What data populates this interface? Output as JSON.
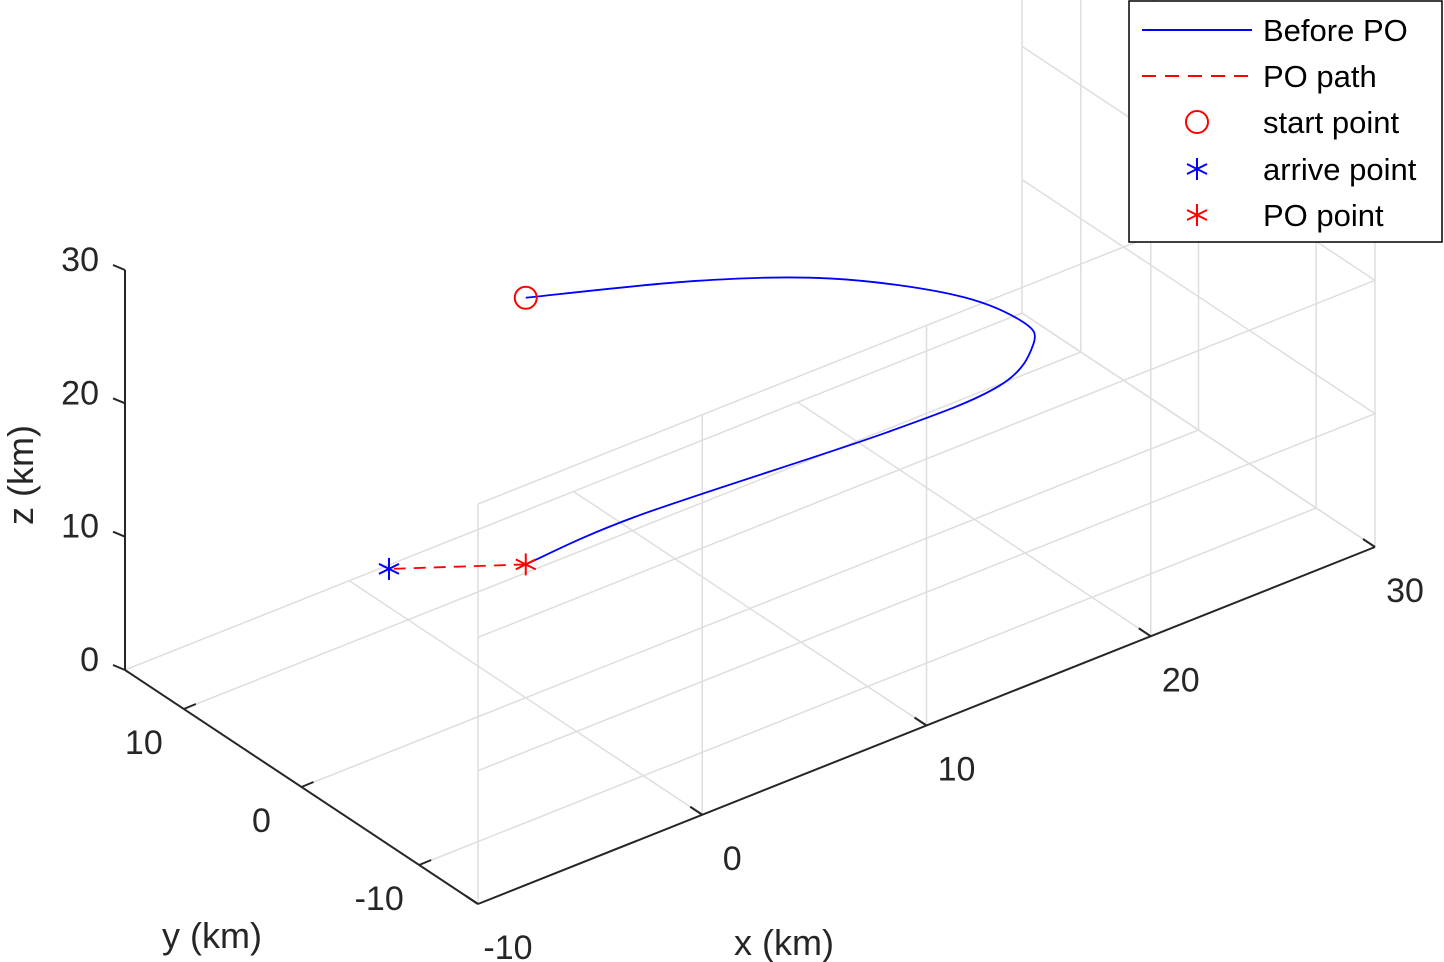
{
  "chart_data": {
    "type": "line",
    "title": "",
    "xlabel": "x (km)",
    "ylabel": "y (km)",
    "zlabel": "z (km)",
    "xlim": [
      -10,
      30
    ],
    "ylim": [
      -15,
      15
    ],
    "zlim": [
      0,
      30
    ],
    "x_ticks": [
      -10,
      0,
      10,
      20,
      30
    ],
    "y_ticks": [
      -10,
      0,
      10
    ],
    "z_ticks": [
      0,
      10,
      20,
      30
    ],
    "grid": true,
    "legend_position": "top-right",
    "series": [
      {
        "name": "Before PO",
        "style": "solid",
        "color": "#0000ff",
        "points": [
          [
            0,
            0,
            30
          ],
          [
            6,
            -3,
            29
          ],
          [
            11,
            -5,
            27
          ],
          [
            16,
            -6,
            23
          ],
          [
            19,
            -6,
            19
          ],
          [
            20,
            -5,
            16
          ],
          [
            19,
            -4,
            13
          ],
          [
            15,
            -2,
            11
          ],
          [
            5,
            0,
            10.3
          ],
          [
            0,
            0,
            10
          ]
        ]
      },
      {
        "name": "PO path",
        "style": "dashed",
        "color": "#ff0000",
        "points": [
          [
            0,
            0,
            10
          ],
          [
            -4,
            4,
            10
          ]
        ]
      },
      {
        "name": "start point",
        "marker": "circle",
        "color": "#ff0000",
        "points": [
          [
            0,
            0,
            30
          ]
        ]
      },
      {
        "name": "arrive point",
        "marker": "asterisk",
        "color": "#0000ff",
        "points": [
          [
            -4,
            4,
            10
          ]
        ]
      },
      {
        "name": "PO point",
        "marker": "asterisk",
        "color": "#ff0000",
        "points": [
          [
            0,
            0,
            10
          ]
        ]
      }
    ]
  }
}
